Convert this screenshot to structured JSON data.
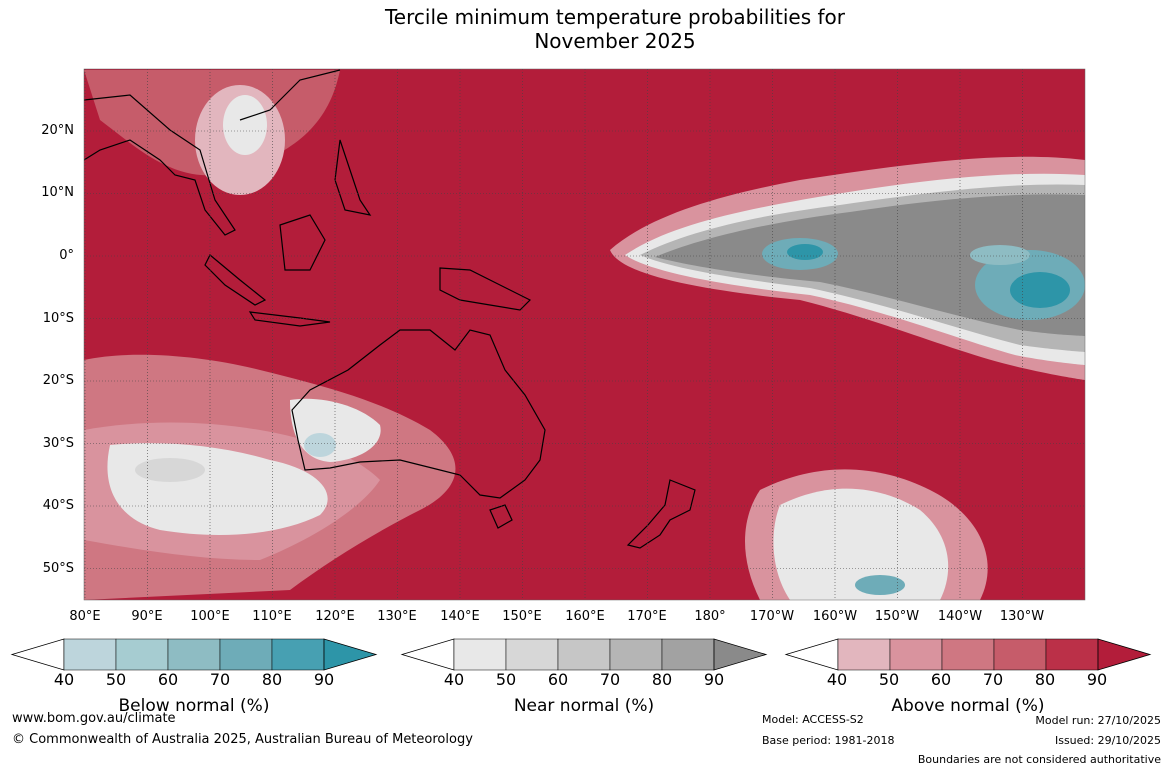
{
  "title": {
    "line1": "Tercile minimum temperature probabilities for",
    "line2": "November 2025"
  },
  "map": {
    "lat_labels": [
      "20°N",
      "10°N",
      "0°",
      "10°S",
      "20°S",
      "30°S",
      "40°S",
      "50°S"
    ],
    "lon_labels": [
      "80°E",
      "90°E",
      "100°E",
      "110°E",
      "120°E",
      "130°E",
      "140°E",
      "150°E",
      "160°E",
      "170°E",
      "180°",
      "170°W",
      "160°W",
      "150°W",
      "140°W",
      "130°W"
    ]
  },
  "colorbars": [
    {
      "title": "Below normal (%)",
      "ticks": [
        "40",
        "50",
        "60",
        "70",
        "80",
        "90"
      ],
      "colors": [
        "#bdd5dc",
        "#a6ccd1",
        "#8ebcc3",
        "#6eacb8",
        "#47a0b2",
        "#2d95a8"
      ]
    },
    {
      "title": "Near normal (%)",
      "ticks": [
        "40",
        "50",
        "60",
        "70",
        "80",
        "90"
      ],
      "colors": [
        "#e8e8e8",
        "#d7d7d7",
        "#c6c6c6",
        "#b5b5b5",
        "#a2a2a2",
        "#8a8a8a"
      ]
    },
    {
      "title": "Above normal (%)",
      "ticks": [
        "40",
        "50",
        "60",
        "70",
        "80",
        "90"
      ],
      "colors": [
        "#e2b6be",
        "#d9939e",
        "#cf7782",
        "#c65c6a",
        "#bb3048",
        "#b31d3a"
      ]
    }
  ],
  "footer": {
    "website": "www.bom.gov.au/climate",
    "copyright": "© Commonwealth of Australia 2025, Australian Bureau of Meteorology",
    "model": "Model: ACCESS-S2",
    "base_period": "Base period: 1981-2018",
    "model_run": "Model run: 27/10/2025",
    "issued": "Issued: 29/10/2025",
    "disclaimer": "Boundaries are not considered authoritative"
  }
}
